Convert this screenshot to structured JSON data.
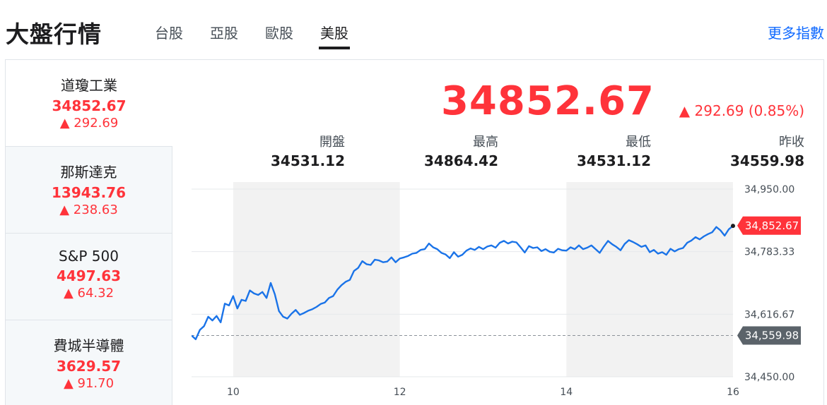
{
  "header": {
    "title": "大盤行情",
    "tabs": [
      "台股",
      "亞股",
      "歐股",
      "美股"
    ],
    "active_tab": 3,
    "more_link": "更多指數"
  },
  "indices": [
    {
      "name": "道瓊工業",
      "value": "34852.67",
      "change": "292.69",
      "active": true
    },
    {
      "name": "那斯達克",
      "value": "13943.76",
      "change": "238.63",
      "active": false
    },
    {
      "name": "S&P 500",
      "value": "4497.63",
      "change": "64.32",
      "active": false
    },
    {
      "name": "費城半導體",
      "value": "3629.57",
      "change": "91.70",
      "active": false
    }
  ],
  "detail": {
    "price": "34852.67",
    "change": "292.69 (0.85%)",
    "stats": [
      {
        "label": "開盤",
        "value": "34531.12"
      },
      {
        "label": "最高",
        "value": "34864.42"
      },
      {
        "label": "最低",
        "value": "34531.12"
      },
      {
        "label": "昨收",
        "value": "34559.98"
      }
    ]
  },
  "colors": {
    "up": "#ff333a",
    "line": "#1a73e8",
    "prev_close": "#5b636a",
    "band": "#f2f2f2"
  },
  "chart_data": {
    "type": "line",
    "x_ticks": [
      "10",
      "12",
      "14",
      "16"
    ],
    "y_ticks": [
      "34,950.00",
      "34,783.33",
      "34,616.67",
      "34,450.00"
    ],
    "ylim": [
      34450,
      34950
    ],
    "xlim": [
      9.5,
      16
    ],
    "current_label": "34,852.67",
    "current_value": 34852.67,
    "prev_close_label": "34,559.98",
    "prev_close_value": 34559.98,
    "x": [
      9.5,
      9.55,
      9.6,
      9.65,
      9.7,
      9.75,
      9.8,
      9.85,
      9.9,
      9.95,
      10,
      10.05,
      10.1,
      10.15,
      10.2,
      10.25,
      10.3,
      10.35,
      10.4,
      10.45,
      10.5,
      10.55,
      10.6,
      10.65,
      10.7,
      10.75,
      10.8,
      10.85,
      10.9,
      10.95,
      11,
      11.05,
      11.1,
      11.15,
      11.2,
      11.25,
      11.3,
      11.35,
      11.4,
      11.45,
      11.5,
      11.55,
      11.6,
      11.65,
      11.7,
      11.75,
      11.8,
      11.85,
      11.9,
      11.95,
      12,
      12.05,
      12.1,
      12.15,
      12.2,
      12.25,
      12.3,
      12.35,
      12.4,
      12.45,
      12.5,
      12.55,
      12.6,
      12.65,
      12.7,
      12.75,
      12.8,
      12.85,
      12.9,
      12.95,
      13,
      13.05,
      13.1,
      13.15,
      13.2,
      13.25,
      13.3,
      13.35,
      13.4,
      13.45,
      13.5,
      13.55,
      13.6,
      13.65,
      13.7,
      13.75,
      13.8,
      13.85,
      13.9,
      13.95,
      14,
      14.05,
      14.1,
      14.15,
      14.2,
      14.25,
      14.3,
      14.35,
      14.4,
      14.45,
      14.5,
      14.55,
      14.6,
      14.65,
      14.7,
      14.75,
      14.8,
      14.85,
      14.9,
      14.95,
      15,
      15.05,
      15.1,
      15.15,
      15.2,
      15.25,
      15.3,
      15.35,
      15.4,
      15.45,
      15.5,
      15.55,
      15.6,
      15.65,
      15.7,
      15.75,
      15.8,
      15.85,
      15.9,
      15.95,
      16
    ],
    "y": [
      34560,
      34550,
      34575,
      34585,
      34610,
      34600,
      34612,
      34595,
      34645,
      34640,
      34665,
      34632,
      34655,
      34652,
      34680,
      34672,
      34668,
      34676,
      34660,
      34700,
      34670,
      34625,
      34610,
      34605,
      34618,
      34628,
      34615,
      34620,
      34626,
      34630,
      34636,
      34644,
      34648,
      34660,
      34665,
      34682,
      34694,
      34703,
      34708,
      34732,
      34740,
      34758,
      34750,
      34748,
      34762,
      34760,
      34755,
      34757,
      34768,
      34755,
      34765,
      34768,
      34772,
      34778,
      34780,
      34788,
      34790,
      34805,
      34795,
      34790,
      34780,
      34776,
      34766,
      34782,
      34770,
      34775,
      34786,
      34792,
      34788,
      34796,
      34790,
      34797,
      34800,
      34794,
      34807,
      34812,
      34805,
      34810,
      34808,
      34795,
      34781,
      34798,
      34793,
      34795,
      34785,
      34790,
      34783,
      34781,
      34791,
      34787,
      34786,
      34795,
      34790,
      34800,
      34790,
      34794,
      34800,
      34790,
      34780,
      34797,
      34812,
      34803,
      34796,
      34787,
      34804,
      34814,
      34809,
      34803,
      34796,
      34800,
      34782,
      34788,
      34778,
      34782,
      34775,
      34791,
      34784,
      34790,
      34793,
      34807,
      34813,
      34822,
      34816,
      34824,
      34830,
      34835,
      34849,
      34840,
      34826,
      34843,
      34852
    ]
  }
}
